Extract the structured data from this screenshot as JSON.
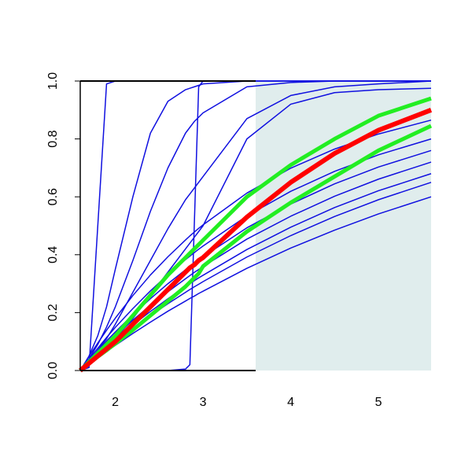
{
  "chart_data": {
    "type": "line",
    "x": [
      1.6,
      1.7,
      1.8,
      1.9,
      2.0,
      2.2,
      2.4,
      2.6,
      2.8,
      2.85,
      2.9,
      2.95,
      3.0,
      3.5,
      4.0,
      4.5,
      5.0,
      5.6
    ],
    "xlim": [
      1.6,
      5.6
    ],
    "ylim": [
      0,
      1
    ],
    "xticks": [
      2,
      3,
      4,
      5
    ],
    "yticks": [
      {
        "value": 0,
        "label": "0.0"
      },
      0.2,
      0.4,
      0.6,
      0.8,
      {
        "value": 1,
        "label": "1.0"
      }
    ],
    "shade": {
      "xlim": [
        3.6,
        5.6
      ],
      "color": "#e0eded"
    },
    "ref_lines": {
      "y": [
        0,
        1
      ],
      "xlim": [
        1.6,
        3.6
      ]
    },
    "series": [
      {
        "color": "#1010e0",
        "width": 1.5,
        "values": [
          0,
          0.01,
          0.5,
          0.99,
          1,
          1,
          1,
          1,
          1,
          1,
          1,
          1,
          1,
          1,
          1,
          1,
          1,
          1
        ]
      },
      {
        "color": "#1010e0",
        "width": 1.5,
        "values": [
          0,
          0,
          0,
          0,
          0,
          0,
          0,
          0,
          0.005,
          0.02,
          0.5,
          0.98,
          1,
          1,
          1,
          1,
          1,
          1
        ]
      },
      {
        "color": "#1010e0",
        "width": 1.5,
        "values": [
          0,
          0.05,
          0.12,
          0.22,
          0.35,
          0.6,
          0.82,
          0.93,
          0.97,
          0.975,
          0.98,
          0.985,
          0.99,
          1,
          1,
          1,
          1,
          1
        ]
      },
      {
        "color": "#1010e0",
        "width": 1.5,
        "values": [
          0,
          0.04,
          0.09,
          0.15,
          0.22,
          0.38,
          0.55,
          0.7,
          0.82,
          0.84,
          0.86,
          0.875,
          0.89,
          0.98,
          0.995,
          1,
          1,
          1
        ]
      },
      {
        "color": "#1010e0",
        "width": 1.5,
        "values": [
          0,
          0.03,
          0.07,
          0.11,
          0.16,
          0.27,
          0.38,
          0.49,
          0.59,
          0.61,
          0.63,
          0.65,
          0.67,
          0.87,
          0.95,
          0.98,
          0.99,
          1
        ]
      },
      {
        "color": "#1010e0",
        "width": 1.5,
        "values": [
          0,
          0.025,
          0.05,
          0.08,
          0.11,
          0.18,
          0.26,
          0.34,
          0.42,
          0.44,
          0.46,
          0.48,
          0.5,
          0.8,
          0.92,
          0.96,
          0.97,
          0.975
        ]
      },
      {
        "color": "#1010e0",
        "width": 1.5,
        "values": [
          0,
          0.049,
          0.095,
          0.139,
          0.181,
          0.259,
          0.33,
          0.393,
          0.451,
          0.465,
          0.478,
          0.491,
          0.503,
          0.613,
          0.699,
          0.765,
          0.817,
          0.865
        ]
      },
      {
        "color": "#1010e0",
        "width": 1.5,
        "values": [
          0,
          0.023,
          0.045,
          0.066,
          0.087,
          0.128,
          0.167,
          0.205,
          0.24,
          0.249,
          0.257,
          0.266,
          0.274,
          0.353,
          0.423,
          0.485,
          0.541,
          0.6
        ]
      },
      {
        "color": "#1010e0",
        "width": 1.5,
        "values": [
          0,
          0.026,
          0.051,
          0.076,
          0.1,
          0.145,
          0.189,
          0.231,
          0.27,
          0.28,
          0.289,
          0.298,
          0.307,
          0.392,
          0.466,
          0.532,
          0.59,
          0.65
        ]
      },
      {
        "color": "#1010e0",
        "width": 1.5,
        "values": [
          0,
          0.028,
          0.055,
          0.082,
          0.108,
          0.157,
          0.204,
          0.248,
          0.29,
          0.3,
          0.31,
          0.32,
          0.329,
          0.418,
          0.495,
          0.563,
          0.621,
          0.68
        ]
      },
      {
        "color": "#1010e0",
        "width": 1.5,
        "values": [
          0,
          0.031,
          0.062,
          0.091,
          0.119,
          0.174,
          0.225,
          0.272,
          0.317,
          0.328,
          0.339,
          0.349,
          0.359,
          0.454,
          0.533,
          0.602,
          0.661,
          0.72
        ]
      },
      {
        "color": "#1010e0",
        "width": 1.5,
        "values": [
          0,
          0.035,
          0.069,
          0.102,
          0.133,
          0.193,
          0.248,
          0.3,
          0.348,
          0.36,
          0.371,
          0.382,
          0.393,
          0.493,
          0.575,
          0.645,
          0.703,
          0.76
        ]
      },
      {
        "color": "#1010e0",
        "width": 1.5,
        "values": [
          0,
          0.039,
          0.077,
          0.114,
          0.149,
          0.214,
          0.275,
          0.331,
          0.383,
          0.395,
          0.407,
          0.419,
          0.43,
          0.534,
          0.619,
          0.688,
          0.745,
          0.8
        ]
      },
      {
        "color": "#22ee22",
        "width": 5,
        "values": [
          0,
          0.024,
          0.048,
          0.07,
          0.093,
          0.14,
          0.19,
          0.24,
          0.29,
          0.305,
          0.32,
          0.335,
          0.36,
          0.48,
          0.58,
          0.67,
          0.76,
          0.845
        ]
      },
      {
        "color": "#22ee22",
        "width": 5,
        "values": [
          0,
          0.03,
          0.06,
          0.09,
          0.12,
          0.19,
          0.26,
          0.33,
          0.39,
          0.405,
          0.42,
          0.435,
          0.45,
          0.6,
          0.71,
          0.8,
          0.88,
          0.94
        ]
      },
      {
        "color": "#ff0000",
        "width": 6,
        "values": [
          0,
          0.025,
          0.05,
          0.075,
          0.1,
          0.16,
          0.22,
          0.28,
          0.34,
          0.355,
          0.365,
          0.38,
          0.39,
          0.53,
          0.65,
          0.75,
          0.83,
          0.9
        ]
      }
    ]
  }
}
